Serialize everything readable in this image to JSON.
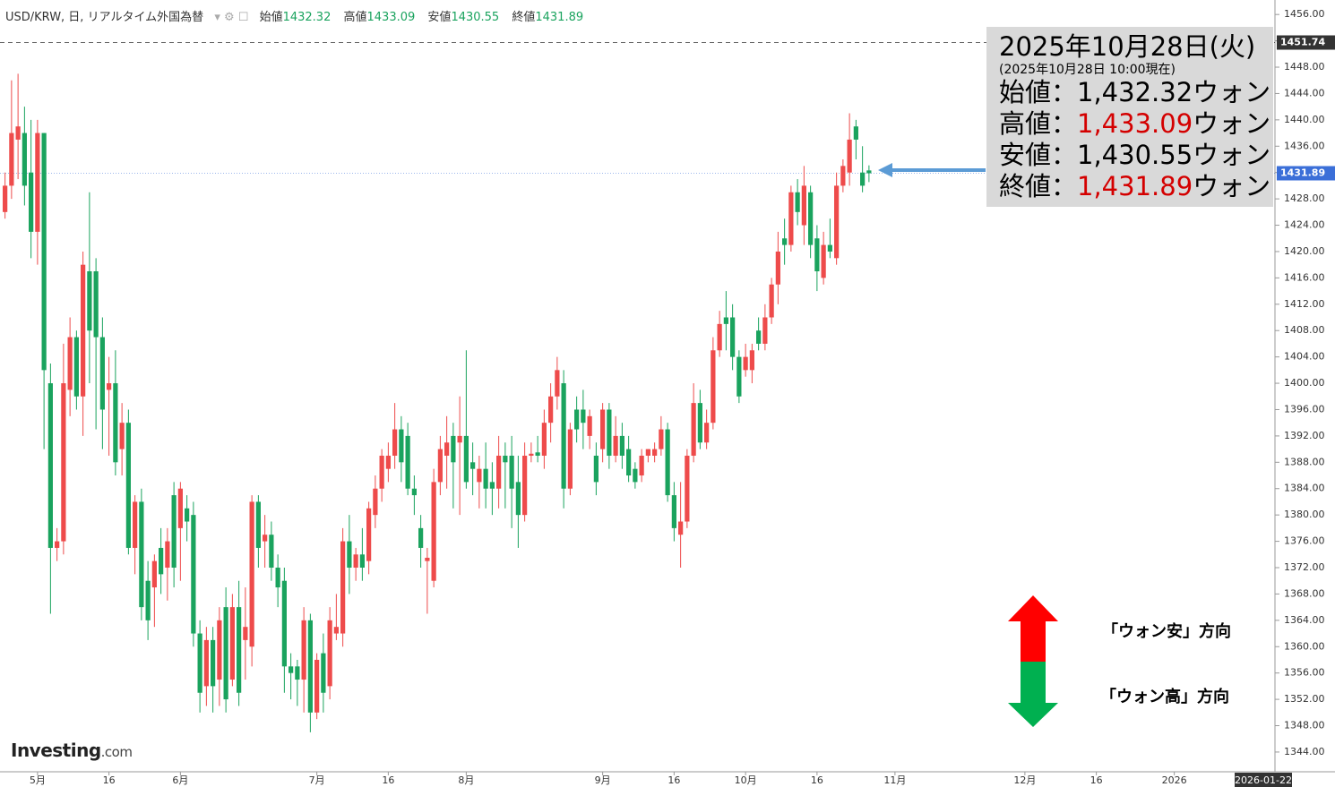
{
  "chart_data": {
    "type": "candlestick",
    "title": "USD/KRW, 日, リアルタイム外国為替",
    "ohlc_labels": [
      "始値",
      "高値",
      "安値",
      "終値"
    ],
    "up_color": "#ee4b4b",
    "down_color": "#1aa35e",
    "categories": [
      null,
      null,
      null,
      null,
      null,
      "5月",
      null,
      null,
      null,
      null,
      null,
      null,
      null,
      null,
      null,
      null,
      "16",
      null,
      null,
      null,
      null,
      null,
      null,
      null,
      null,
      null,
      null,
      "6月",
      null,
      null,
      null,
      null,
      null,
      null,
      null,
      null,
      null,
      null,
      null,
      null,
      null,
      null,
      null,
      null,
      null,
      null,
      null,
      null,
      "7月",
      null,
      null,
      null,
      null,
      null,
      null,
      null,
      null,
      null,
      null,
      "16",
      null,
      null,
      null,
      null,
      null,
      null,
      null,
      null,
      null,
      null,
      null,
      "8月",
      null,
      null,
      null,
      null,
      null,
      null,
      null,
      null,
      null,
      null,
      null,
      null,
      null,
      null,
      null,
      null,
      null,
      null,
      null,
      null,
      "9月",
      null,
      null,
      null,
      null,
      null,
      null,
      null,
      null,
      null,
      null,
      "16",
      null,
      null,
      null,
      null,
      null,
      null,
      null,
      null,
      null,
      null,
      "10月",
      null,
      null,
      null,
      null,
      null,
      null,
      null,
      null,
      null,
      null,
      "16",
      null,
      null,
      null,
      null,
      null,
      null,
      null,
      null,
      null,
      null,
      null,
      "11月",
      null,
      null,
      null,
      null,
      null,
      null,
      null,
      null,
      null,
      null,
      null,
      null,
      null,
      null,
      null,
      null,
      null,
      null,
      null,
      "12月",
      null,
      null,
      null,
      null,
      null,
      null,
      null,
      null,
      null,
      null,
      "16",
      null,
      null,
      null,
      null,
      null,
      null,
      null,
      null,
      null,
      null,
      null,
      "2026",
      null,
      null,
      null,
      null,
      null,
      null,
      null,
      null,
      null,
      null,
      null,
      null,
      null,
      null,
      null
    ],
    "open": [
      1426,
      1430,
      1437,
      1438,
      1432,
      1423,
      1438,
      1400,
      1375,
      1376,
      1399,
      1407,
      1398,
      1417,
      1417,
      1407,
      1399,
      1400,
      1390,
      1394,
      1375,
      1382,
      1370,
      1369,
      1375,
      1372,
      1383,
      1378,
      1381,
      1380,
      1362,
      1354,
      1361,
      1355,
      1366,
      1355,
      1366,
      1361,
      1360,
      1382,
      1376,
      1377,
      1372,
      1370,
      1357,
      1357,
      1355,
      1364,
      1350,
      1359,
      1354,
      1362,
      1362,
      1376,
      1372,
      1374,
      1373,
      1380,
      1384,
      1387,
      1389,
      1393,
      1392,
      1384,
      1378,
      1373,
      1370,
      1385,
      1389,
      1392,
      1391,
      1392,
      1388,
      1385,
      1387,
      1385,
      1384,
      1389,
      1389,
      1385,
      1380,
      1389,
      1389.5,
      1389,
      1394,
      1398,
      1400,
      1384,
      1396,
      1396,
      1392,
      1389,
      1390,
      1396,
      1389,
      1392,
      1390,
      1387,
      1386,
      1389,
      1389,
      1390,
      1393,
      1383,
      1377,
      1379,
      1389,
      1397,
      1391,
      1394,
      1405,
      1410,
      1410,
      1404,
      1402,
      1402,
      1408,
      1406,
      1410,
      1415,
      1422,
      1421,
      1429,
      1424,
      1429,
      1422,
      1416,
      1421,
      1419,
      1430,
      1432,
      1439,
      1432,
      1432.32,
      null,
      null,
      null,
      null,
      null,
      null,
      null,
      null,
      null,
      null,
      null,
      null,
      null,
      null,
      null,
      null,
      null,
      null,
      null,
      null,
      null,
      null,
      null,
      null,
      null,
      null,
      null,
      null,
      null,
      null,
      null,
      null,
      null,
      null,
      null,
      null,
      null,
      null,
      null,
      null,
      null,
      null,
      null,
      null,
      null,
      null,
      null,
      null,
      null,
      null,
      null,
      null,
      null,
      null,
      null,
      null,
      null,
      null,
      null,
      null,
      null,
      null
    ],
    "high": [
      1432,
      1446,
      1447,
      1442,
      1440,
      1440,
      1438,
      1403,
      1378,
      1406,
      1410,
      1408,
      1420,
      1429,
      1419,
      1410,
      1404,
      1405,
      1397,
      1396,
      1383,
      1384,
      1373,
      1374,
      1378,
      1378,
      1385,
      1385,
      1383,
      1382,
      1364,
      1363,
      1363,
      1366,
      1369,
      1368,
      1370,
      1369,
      1383,
      1383,
      1380,
      1379,
      1374,
      1372,
      1359,
      1358,
      1366,
      1365,
      1359,
      1362,
      1366,
      1368,
      1378,
      1380,
      1375,
      1378,
      1382,
      1386,
      1390,
      1391,
      1397,
      1395,
      1394,
      1386,
      1380,
      1375,
      1387,
      1392,
      1395,
      1394,
      1398,
      1405,
      1391,
      1389,
      1391,
      1388,
      1392,
      1391,
      1392,
      1389,
      1391,
      1391,
      1392,
      1396,
      1400,
      1404,
      1402,
      1394,
      1398,
      1399,
      1396,
      1391,
      1397,
      1397,
      1395,
      1394,
      1392,
      1388,
      1390,
      1390,
      1391,
      1395,
      1394,
      1385,
      1385,
      1390,
      1400,
      1399,
      1396,
      1407,
      1411,
      1414,
      1412,
      1405,
      1406,
      1406,
      1410,
      1412,
      1416,
      1423,
      1425,
      1430,
      1431,
      1433,
      1430,
      1424,
      1423,
      1425,
      1432,
      1434,
      1441,
      1440,
      1436,
      1433.09,
      null,
      null,
      null,
      null,
      null,
      null,
      null,
      null,
      null,
      null,
      null,
      null,
      null,
      null,
      null,
      null,
      null,
      null,
      null,
      null,
      null,
      null,
      null,
      null,
      null,
      null,
      null,
      null,
      null,
      null,
      null,
      null,
      null,
      null,
      null,
      null,
      null,
      null,
      null,
      null,
      null,
      null,
      null,
      null,
      null,
      null,
      null,
      null,
      null,
      null,
      null,
      null,
      null,
      null,
      null,
      null,
      null,
      null,
      null,
      null,
      null,
      null
    ],
    "low": [
      1425,
      1428,
      1431,
      1427,
      1419,
      1418,
      1390,
      1365,
      1373,
      1374,
      1395,
      1396,
      1392,
      1400,
      1393,
      1390,
      1389,
      1386,
      1386,
      1374,
      1371,
      1364,
      1361,
      1363,
      1368,
      1367,
      1369,
      1370,
      1376,
      1360,
      1350,
      1351,
      1350,
      1351,
      1350,
      1354,
      1351,
      1355,
      1357,
      1372,
      1372,
      1370,
      1366,
      1353,
      1352,
      1351,
      1350,
      1347,
      1349,
      1350,
      1352,
      1361,
      1360,
      1368,
      1370,
      1370,
      1371,
      1378,
      1382,
      1385,
      1387,
      1385,
      1383,
      1380,
      1372,
      1365,
      1369,
      1383,
      1384,
      1381,
      1380,
      1384,
      1383,
      1381,
      1381,
      1380,
      1381,
      1381,
      1378,
      1375,
      1379,
      1388,
      1388,
      1387,
      1391,
      1396,
      1381,
      1383,
      1391,
      1390,
      1390,
      1383,
      1388,
      1387,
      1388,
      1387,
      1385,
      1384,
      1385,
      1388,
      1388,
      1389,
      1382,
      1376,
      1372,
      1378,
      1388,
      1390,
      1390,
      1393,
      1404,
      1405,
      1402,
      1397,
      1401,
      1400,
      1405,
      1405,
      1409,
      1412,
      1418,
      1420,
      1424,
      1421,
      1419,
      1414,
      1415,
      1419,
      1418,
      1429,
      1430,
      1434,
      1429,
      1430.55,
      null,
      null,
      null,
      null,
      null,
      null,
      null,
      null,
      null,
      null,
      null,
      null,
      null,
      null,
      null,
      null,
      null,
      null,
      null,
      null,
      null,
      null,
      null,
      null,
      null,
      null,
      null,
      null,
      null,
      null,
      null,
      null,
      null,
      null,
      null,
      null,
      null,
      null,
      null,
      null,
      null,
      null,
      null,
      null,
      null,
      null,
      null,
      null,
      null,
      null,
      null,
      null,
      null,
      null,
      null,
      null,
      null,
      null,
      null,
      null,
      null,
      null
    ],
    "close": [
      1430,
      1438,
      1439,
      1430,
      1423,
      1438,
      1402,
      1375,
      1376,
      1400,
      1407,
      1398,
      1418,
      1408,
      1407,
      1396,
      1400,
      1388,
      1394,
      1375,
      1382,
      1366,
      1364,
      1373,
      1371,
      1376,
      1372,
      1384,
      1379,
      1362,
      1353,
      1361,
      1354,
      1364,
      1352,
      1366,
      1353,
      1363,
      1382,
      1375,
      1377,
      1372,
      1369,
      1357,
      1356,
      1355,
      1364,
      1350,
      1358,
      1353,
      1364,
      1363,
      1376,
      1372,
      1374,
      1372,
      1381,
      1384,
      1389,
      1389,
      1393,
      1388,
      1384,
      1383,
      1375,
      1373.5,
      1385,
      1390,
      1391,
      1388,
      1392,
      1385,
      1387,
      1387,
      1384,
      1384,
      1389,
      1388,
      1384,
      1380,
      1389,
      1389.3,
      1389,
      1394,
      1398,
      1402,
      1384,
      1393,
      1393,
      1394,
      1395,
      1385,
      1396,
      1389,
      1392,
      1389,
      1386,
      1385,
      1389,
      1390,
      1390,
      1393,
      1383,
      1378,
      1379,
      1389,
      1397,
      1391,
      1394,
      1405,
      1409,
      1409,
      1404,
      1398,
      1404,
      1405,
      1406,
      1410,
      1415,
      1420,
      1421,
      1429,
      1426,
      1430,
      1421,
      1417,
      1421,
      1420,
      1430,
      1433,
      1437,
      1437,
      1430,
      1431.89,
      null,
      null,
      null,
      null,
      null,
      null,
      null,
      null,
      null,
      null,
      null,
      null,
      null,
      null,
      null,
      null,
      null,
      null,
      null,
      null,
      null,
      null,
      null,
      null,
      null,
      null,
      null,
      null,
      null,
      null,
      null,
      null,
      null,
      null,
      null,
      null,
      null,
      null,
      null,
      null,
      null,
      null,
      null,
      null,
      null,
      null,
      null,
      null,
      null,
      null,
      null,
      null,
      null,
      null,
      null,
      null,
      null,
      null,
      null,
      null,
      null,
      null
    ],
    "ylim": [
      1341,
      1458.2
    ],
    "yticks": [
      {
        "value": 1344,
        "label": "1344.00"
      },
      {
        "value": 1348,
        "label": "1348.00"
      },
      {
        "value": 1352,
        "label": "1352.00"
      },
      {
        "value": 1356,
        "label": "1356.00"
      },
      {
        "value": 1360,
        "label": "1360.00"
      },
      {
        "value": 1364,
        "label": "1364.00"
      },
      {
        "value": 1368,
        "label": "1368.00"
      },
      {
        "value": 1372,
        "label": "1372.00"
      },
      {
        "value": 1376,
        "label": "1376.00"
      },
      {
        "value": 1380,
        "label": "1380.00"
      },
      {
        "value": 1384,
        "label": "1384.00"
      },
      {
        "value": 1388,
        "label": "1388.00"
      },
      {
        "value": 1392,
        "label": "1392.00"
      },
      {
        "value": 1396,
        "label": "1396.00"
      },
      {
        "value": 1400,
        "label": "1400.00"
      },
      {
        "value": 1404,
        "label": "1404.00"
      },
      {
        "value": 1408,
        "label": "1408.00"
      },
      {
        "value": 1412,
        "label": "1412.00"
      },
      {
        "value": 1416,
        "label": "1416.00"
      },
      {
        "value": 1420,
        "label": "1420.00"
      },
      {
        "value": 1424,
        "label": "1424.00"
      },
      {
        "value": 1428,
        "label": "1428.00"
      },
      {
        "value": 1432,
        "label": "1432.00"
      },
      {
        "value": 1436,
        "label": "1436.00"
      },
      {
        "value": 1440,
        "label": "1440.00"
      },
      {
        "value": 1444,
        "label": "1444.00"
      },
      {
        "value": 1448,
        "label": "1448.00"
      },
      {
        "value": 1452,
        "label": "1452.00"
      },
      {
        "value": 1456,
        "label": "1456.00"
      }
    ],
    "price_lines": [
      {
        "value": 1451.74,
        "color": "#333333",
        "dashed": true
      },
      {
        "value": 1431.89,
        "color": "#3b6fd8",
        "dashed": false
      }
    ],
    "crosshair_date": "2026-01-22",
    "annotation": {
      "date": "2025年10月28日(火)",
      "note": "(2025年10月28日 10:00現在)",
      "rows": [
        {
          "label": "始値：",
          "value": "1,432.32",
          "unit": "ウォン",
          "value_color": "#000000"
        },
        {
          "label": "高値：",
          "value": "1,433.09",
          "unit": "ウォン",
          "value_color": "#d40000"
        },
        {
          "label": "安値：",
          "value": "1,430.55",
          "unit": "ウォン",
          "value_color": "#000000"
        },
        {
          "label": "終値：",
          "value": "1,431.89",
          "unit": "ウォン",
          "value_color": "#d40000"
        }
      ]
    },
    "direction_labels": [
      "「ウォン安」方向",
      "「ウォン高」方向"
    ],
    "logo": {
      "main": "Investing",
      "suffix": ".com"
    }
  }
}
